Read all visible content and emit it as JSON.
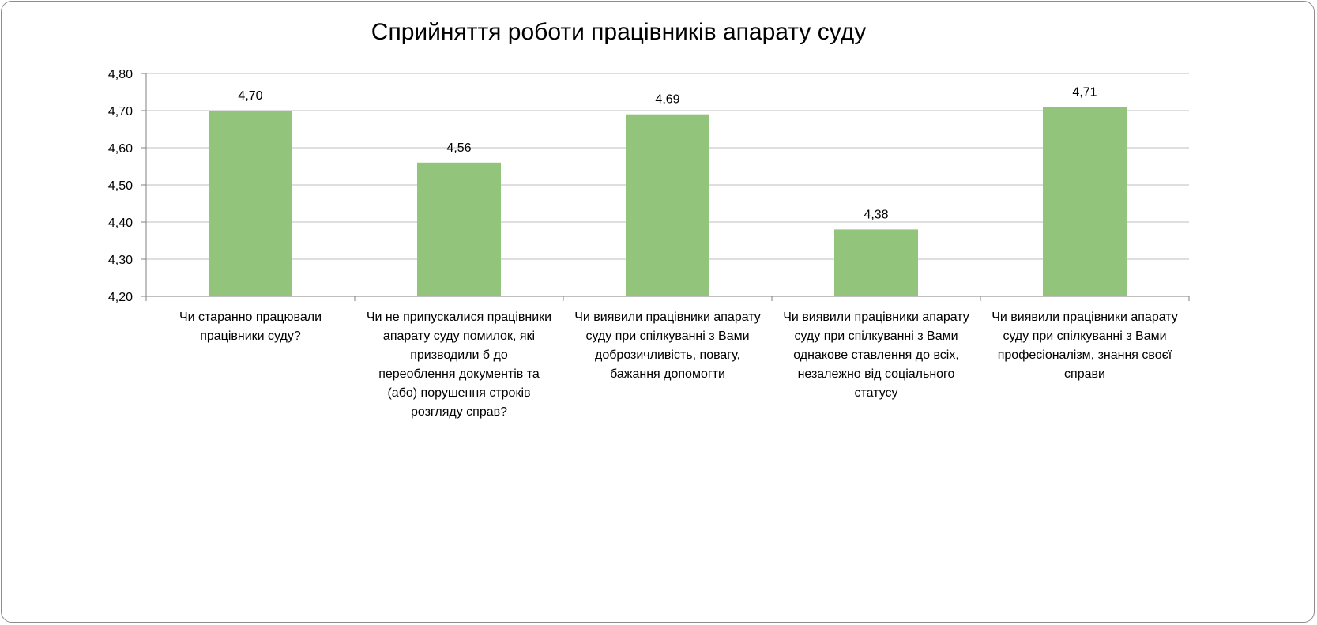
{
  "chart_data": {
    "type": "bar",
    "title": "Сприйняття роботи працівників апарату суду",
    "categories": [
      [
        "Чи старанно працювали",
        "працівники суду?"
      ],
      [
        "Чи не припускалися працівники",
        "апарату суду помилок, які",
        "призводили б до",
        "переоблення документів та",
        "(або) порушення строків",
        "розгляду справ?"
      ],
      [
        "Чи виявили працівники апарату",
        "суду при спілкуванні з Вами",
        "доброзичливість, повагу,",
        "бажання допомогти"
      ],
      [
        "Чи виявили працівники апарату",
        "суду при спілкуванні з Вами",
        "однакове ставлення до всіх,",
        "незалежно від соціального",
        "статусу"
      ],
      [
        "Чи виявили працівники апарату",
        "суду при спілкуванні з Вами",
        "професіоналізм, знання своєї",
        "справи"
      ]
    ],
    "values": [
      4.7,
      4.56,
      4.69,
      4.38,
      4.71
    ],
    "data_labels": [
      "4,70",
      "4,56",
      "4,69",
      "4,38",
      "4,71"
    ],
    "y_ticks": [
      "4,20",
      "4,30",
      "4,40",
      "4,50",
      "4,60",
      "4,70",
      "4,80"
    ],
    "ylim": [
      4.2,
      4.8
    ],
    "xlabel": "",
    "ylabel": "",
    "grid": true,
    "legend": "none",
    "colors": {
      "bar": "#92c47c",
      "grid": "#bfbfbf",
      "axis": "#808080"
    }
  }
}
